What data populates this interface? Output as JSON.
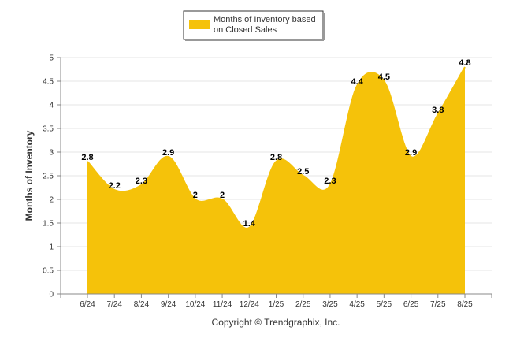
{
  "chart_data": {
    "type": "area",
    "categories": [
      "6/24",
      "7/24",
      "8/24",
      "9/24",
      "10/24",
      "11/24",
      "12/24",
      "1/25",
      "2/25",
      "3/25",
      "4/25",
      "5/25",
      "6/25",
      "7/25",
      "8/25"
    ],
    "series": [
      {
        "name": "Months of Inventory based on Closed Sales",
        "values": [
          2.8,
          2.2,
          2.3,
          2.9,
          2,
          2,
          1.4,
          2.8,
          2.5,
          2.3,
          4.4,
          4.5,
          2.9,
          3.8,
          4.8
        ],
        "color": "#F5C20A"
      }
    ],
    "ylabel": "Months of Inventory",
    "ylim": [
      0,
      5
    ],
    "yticks": [
      "0",
      "0.5",
      "1",
      "1.5",
      "2",
      "2.5",
      "3",
      "3.5",
      "4",
      "4.5",
      "5"
    ],
    "legend": {
      "position": "top-center",
      "line1": "Months of Inventory based",
      "line2": "on Closed Sales"
    },
    "grid": true
  },
  "footer": "Copyright © Trendgraphix, Inc."
}
